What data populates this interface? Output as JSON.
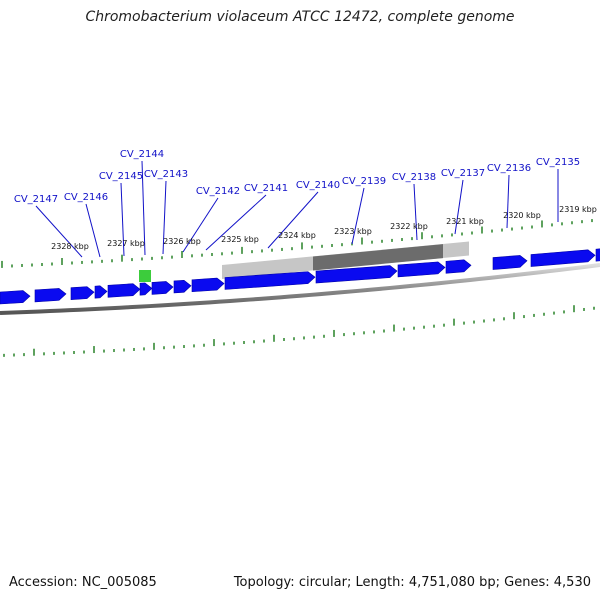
{
  "title": "Chromobacterium violaceum ATCC 12472, complete genome",
  "footer": {
    "accession_label": "Accession:",
    "accession": "NC_005085",
    "topology_label": "Topology:",
    "topology": "circular",
    "length_label": "Length:",
    "length": "4,751,080 bp",
    "genes_label": "Genes:",
    "genes": "4,530"
  },
  "colors": {
    "gene": "#0a0af0",
    "gene_label": "#1212c8",
    "backbone": "#7a7a7a",
    "tick": "#1a7a1a",
    "highlight_light": "#c6c6c6",
    "highlight_dark": "#6c6c6c",
    "marker": "#3ccc3c"
  },
  "kbp_ticks": [
    "2328 kbp",
    "2327 kbp",
    "2326 kbp",
    "2325 kbp",
    "2324 kbp",
    "2323 kbp",
    "2322 kbp",
    "2321 kbp",
    "2320 kbp",
    "2319 kbp"
  ],
  "gene_labels": [
    "CV_2147",
    "CV_2146",
    "CV_2145",
    "CV_2144",
    "CV_2143",
    "CV_2142",
    "CV_2141",
    "CV_2140",
    "CV_2139",
    "CV_2138",
    "CV_2137",
    "CV_2136",
    "CV_2135"
  ]
}
